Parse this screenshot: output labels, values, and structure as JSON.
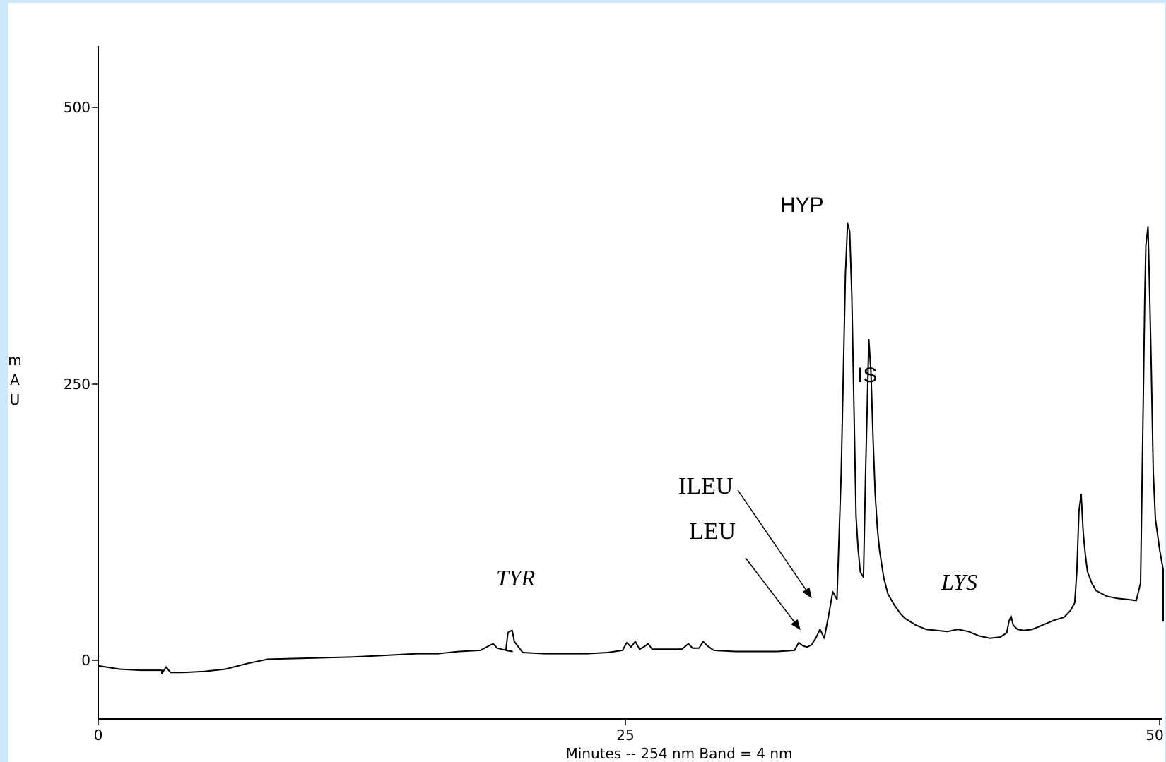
{
  "colors": {
    "frame": "#cbe9fb",
    "plot_bg": "#ffffff",
    "trace": "#000000"
  },
  "chart_data": {
    "type": "line",
    "title": "",
    "xlabel": "Minutes -- 254 nm Band = 4 nm",
    "ylabel": "mAU",
    "ylabel_chars": [
      "m",
      "A",
      "U"
    ],
    "xlim": [
      0,
      50
    ],
    "ylim": [
      -110,
      560
    ],
    "x_ticks": [
      "0",
      "25",
      "50"
    ],
    "y_ticks": [
      "0",
      "250",
      "500"
    ],
    "grid": false,
    "legend": "none",
    "series": [
      {
        "values": [
          [
            0.0,
            -5
          ],
          [
            1.0,
            -8
          ],
          [
            2.0,
            -9
          ],
          [
            3.0,
            -9
          ],
          [
            3.0,
            -12
          ],
          [
            3.2,
            -6
          ],
          [
            3.4,
            -11
          ],
          [
            4.0,
            -11
          ],
          [
            5.0,
            -10
          ],
          [
            6.0,
            -8
          ],
          [
            7.0,
            -3
          ],
          [
            8.0,
            1
          ],
          [
            10.0,
            2
          ],
          [
            12.0,
            3
          ],
          [
            14.0,
            5
          ],
          [
            15.0,
            6
          ],
          [
            16.0,
            6
          ],
          [
            17.0,
            8
          ],
          [
            18.0,
            9
          ],
          [
            18.6,
            15
          ],
          [
            18.8,
            11
          ],
          [
            19.0,
            10
          ],
          [
            19.5,
            8
          ],
          [
            19.2,
            9
          ],
          [
            19.3,
            25
          ],
          [
            19.35,
            26
          ],
          [
            19.5,
            27
          ],
          [
            19.6,
            17
          ],
          [
            20.0,
            7
          ],
          [
            21.0,
            6
          ],
          [
            22.0,
            6
          ],
          [
            23.0,
            6
          ],
          [
            24.0,
            7
          ],
          [
            24.7,
            9
          ],
          [
            24.9,
            16
          ],
          [
            25.1,
            12
          ],
          [
            25.3,
            17
          ],
          [
            25.5,
            10
          ],
          [
            25.7,
            12
          ],
          [
            25.9,
            15
          ],
          [
            26.1,
            10
          ],
          [
            27.0,
            10
          ],
          [
            27.5,
            10
          ],
          [
            27.8,
            15
          ],
          [
            28.0,
            11
          ],
          [
            28.3,
            11
          ],
          [
            28.5,
            17
          ],
          [
            28.7,
            13
          ],
          [
            29.0,
            9
          ],
          [
            30.0,
            8
          ],
          [
            31.0,
            8
          ],
          [
            32.0,
            8
          ],
          [
            32.8,
            9
          ],
          [
            33.0,
            16
          ],
          [
            33.2,
            13
          ],
          [
            33.4,
            12
          ],
          [
            33.6,
            14
          ],
          [
            33.8,
            20
          ],
          [
            34.0,
            28
          ],
          [
            34.2,
            20
          ],
          [
            34.4,
            40
          ],
          [
            34.6,
            62
          ],
          [
            34.8,
            55
          ],
          [
            35.0,
            170
          ],
          [
            35.2,
            350
          ],
          [
            35.3,
            395
          ],
          [
            35.4,
            388
          ],
          [
            35.5,
            330
          ],
          [
            35.6,
            230
          ],
          [
            35.7,
            130
          ],
          [
            35.8,
            100
          ],
          [
            35.9,
            80
          ],
          [
            36.05,
            75
          ],
          [
            36.15,
            170
          ],
          [
            36.3,
            290
          ],
          [
            36.4,
            260
          ],
          [
            36.5,
            200
          ],
          [
            36.6,
            150
          ],
          [
            36.7,
            120
          ],
          [
            36.8,
            100
          ],
          [
            37.0,
            75
          ],
          [
            37.2,
            60
          ],
          [
            37.5,
            50
          ],
          [
            37.8,
            42
          ],
          [
            38.0,
            38
          ],
          [
            38.5,
            32
          ],
          [
            39.0,
            28
          ],
          [
            40.0,
            26
          ],
          [
            40.5,
            28
          ],
          [
            41.0,
            26
          ],
          [
            41.5,
            22
          ],
          [
            42.0,
            20
          ],
          [
            42.5,
            21
          ],
          [
            42.8,
            25
          ],
          [
            42.9,
            35
          ],
          [
            43.0,
            40
          ],
          [
            43.1,
            32
          ],
          [
            43.3,
            28
          ],
          [
            43.6,
            27
          ],
          [
            44.0,
            28
          ],
          [
            44.5,
            32
          ],
          [
            45.0,
            36
          ],
          [
            45.5,
            39
          ],
          [
            45.8,
            45
          ],
          [
            46.0,
            52
          ],
          [
            46.1,
            80
          ],
          [
            46.2,
            135
          ],
          [
            46.3,
            150
          ],
          [
            46.4,
            115
          ],
          [
            46.5,
            95
          ],
          [
            46.6,
            80
          ],
          [
            46.8,
            70
          ],
          [
            47.0,
            63
          ],
          [
            47.5,
            58
          ],
          [
            48.0,
            56
          ],
          [
            48.5,
            55
          ],
          [
            48.9,
            54
          ],
          [
            49.1,
            70
          ],
          [
            49.2,
            200
          ],
          [
            49.3,
            330
          ],
          [
            49.35,
            375
          ],
          [
            49.45,
            392
          ],
          [
            49.5,
            355
          ],
          [
            49.6,
            270
          ],
          [
            49.7,
            170
          ],
          [
            49.8,
            128
          ],
          [
            50.0,
            100
          ],
          [
            50.3,
            82
          ],
          [
            50.6,
            72
          ],
          [
            51.0,
            60
          ],
          [
            51.5,
            46
          ],
          [
            52.0,
            38
          ],
          [
            52.2,
            35
          ]
        ]
      }
    ],
    "annotations": [
      {
        "text": "TYR",
        "style": "italic-serif"
      },
      {
        "text": "ILEU",
        "style": "serif",
        "arrow_to_minutes": 34.7
      },
      {
        "text": "LEU",
        "style": "serif",
        "arrow_to_minutes": 34.3
      },
      {
        "text": "HYP",
        "style": "sans"
      },
      {
        "text": "IS",
        "style": "sans"
      },
      {
        "text": "LYS",
        "style": "italic-serif"
      }
    ]
  }
}
